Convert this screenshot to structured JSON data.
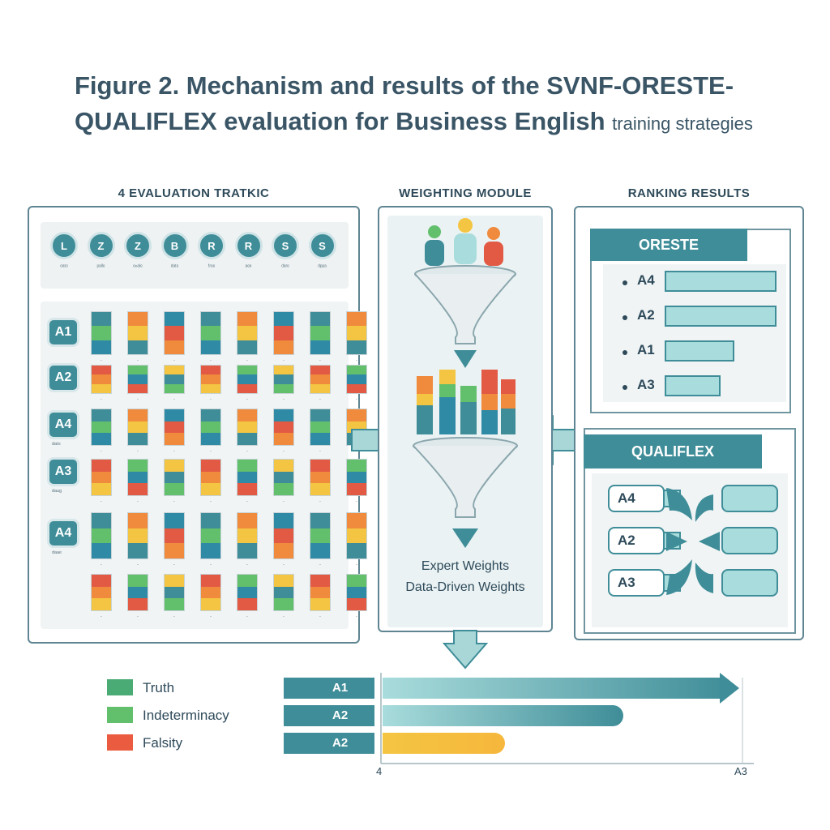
{
  "title": {
    "main": "Figure 2. Mechanism and results of the SVNF-ORESTE-QUALIFLEX evaluation for Business English",
    "tail": "training strategies"
  },
  "sections": {
    "matrix": "4 EVALUATION TRATKIC",
    "weighting": "WEIGHTING MODULE",
    "ranking": "RANKING RESULTS"
  },
  "criteria": [
    {
      "symbol": "L",
      "label": "ᵒᵃᵗᵒ"
    },
    {
      "symbol": "Z",
      "label": "ᵖᵃˡˡᵉ"
    },
    {
      "symbol": "Z",
      "label": "ᵉⁿᵃˡᵉ"
    },
    {
      "symbol": "B",
      "label": "ᵈᵃᵗᵉ"
    },
    {
      "symbol": "R",
      "label": "ᶠʳᵉᵉ"
    },
    {
      "symbol": "R",
      "label": "ᵃᵉᵉ"
    },
    {
      "symbol": "S",
      "label": "ᵈᵃʳᵉ"
    },
    {
      "symbol": "S",
      "label": "ᵈᵖᵖᵃ"
    }
  ],
  "alternatives": [
    {
      "label": "A1",
      "sub": ""
    },
    {
      "label": "A2",
      "sub": ""
    },
    {
      "label": "A4",
      "sub": "ᵈᵃᵗᵉ"
    },
    {
      "label": "A3",
      "sub": "ᵈᵃᵘᵍ"
    },
    {
      "label": "A4",
      "sub": "ᵈᵃᵃᵉ"
    },
    {
      "label": "",
      "sub": ""
    }
  ],
  "weighting": {
    "line1": "Expert Weights",
    "line2": "Data-Driven Weights"
  },
  "oreste": {
    "title": "ORESTE",
    "rows": [
      {
        "label": "A4",
        "value": 1.0
      },
      {
        "label": "A2",
        "value": 1.0
      },
      {
        "label": "A1",
        "value": 0.62
      },
      {
        "label": "A3",
        "value": 0.5
      }
    ]
  },
  "qualiflex": {
    "title": "QUALIFLEX",
    "rows": [
      {
        "label": "A4"
      },
      {
        "label": "A2"
      },
      {
        "label": "A3"
      }
    ]
  },
  "legend": [
    {
      "label": "Truth",
      "color": "#4bab74"
    },
    {
      "label": "Indeterminacy",
      "color": "#62bf6c"
    },
    {
      "label": "Falsity",
      "color": "#ea5b3f"
    }
  ],
  "final_ranking": {
    "rows": [
      {
        "label": "A1",
        "value": 1.0
      },
      {
        "label": "A2",
        "value": 0.69
      },
      {
        "label": "A2",
        "value": 0.35
      }
    ],
    "axis_left": "4",
    "axis_right": "A3"
  },
  "colors": {
    "teal": "#3f8d98",
    "teal_light": "#a9dcdc",
    "yellow": "#f4c542",
    "orange": "#f08a3c",
    "red": "#e25a44",
    "blue": "#2f8aa6",
    "green": "#62bf6c"
  }
}
